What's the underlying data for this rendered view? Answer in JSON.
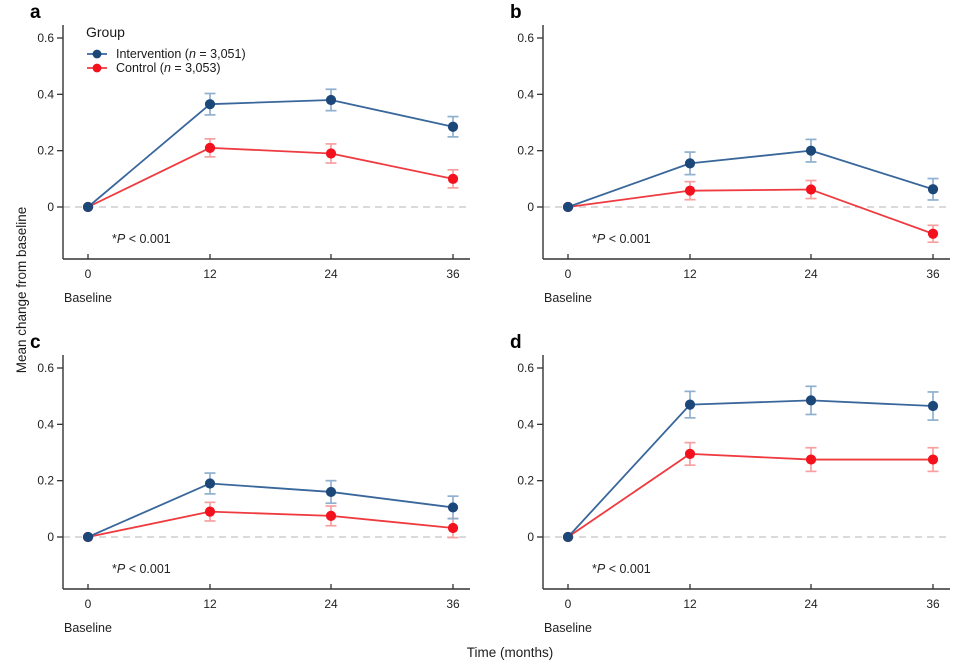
{
  "figure": {
    "y_axis_label": "Mean change from baseline",
    "x_axis_label": "Time (months)",
    "background_color": "#ffffff",
    "text_color": "#222222"
  },
  "legend": {
    "title": "Group",
    "items": [
      {
        "pre": "Intervention (",
        "var": "n",
        "post": " = 3,051)",
        "marker_color": "#1b4779",
        "line_color": "#39679b"
      },
      {
        "pre": "Control (",
        "var": "n",
        "post": " = 3,053)",
        "marker_color": "#f2111c",
        "line_color": "#ef3a3f"
      }
    ]
  },
  "annotation": {
    "star": "*",
    "var": "P",
    "rest": " < 0.001"
  },
  "style": {
    "axis_color": "#333333",
    "zero_line_color": "#c4c4c4",
    "tick_label_color": "#222222",
    "series": [
      {
        "name": "Intervention",
        "line": "#39679b",
        "marker": "#1b4779",
        "error": "#8fb0cf"
      },
      {
        "name": "Control",
        "line": "#ef3a3f",
        "marker": "#f2111c",
        "error": "#f7a0a0"
      }
    ]
  },
  "chart_data": {
    "type": "line",
    "x_label": "Time (months)",
    "y_label": "Mean change from baseline",
    "x_ticks": [
      0,
      12,
      24,
      36
    ],
    "x_tick_extra_label": "Baseline",
    "y_ticks": [
      0,
      0.2,
      0.4,
      0.6
    ],
    "ylim": [
      -0.19,
      0.66
    ],
    "grid": false,
    "legend_position": "top-left of panel a",
    "legend_entries": [
      "Intervention (n = 3,051)",
      "Control (n = 3,053)"
    ],
    "p_annotation": "*P < 0.001",
    "panels": [
      {
        "panel": "a",
        "x": [
          0,
          12,
          24,
          36
        ],
        "series": [
          {
            "name": "Intervention (n = 3,051)",
            "values": [
              0,
              0.365,
              0.38,
              0.285
            ],
            "errors": [
              0,
              0.038,
              0.038,
              0.036
            ]
          },
          {
            "name": "Control (n = 3,053)",
            "values": [
              0,
              0.21,
              0.19,
              0.1
            ],
            "errors": [
              0,
              0.032,
              0.034,
              0.032
            ]
          }
        ],
        "show_legend": true
      },
      {
        "panel": "b",
        "x": [
          0,
          12,
          24,
          36
        ],
        "series": [
          {
            "name": "Intervention (n = 3,051)",
            "values": [
              0,
              0.155,
              0.2,
              0.063
            ],
            "errors": [
              0,
              0.04,
              0.04,
              0.038
            ]
          },
          {
            "name": "Control (n = 3,053)",
            "values": [
              0,
              0.058,
              0.062,
              -0.095
            ],
            "errors": [
              0,
              0.032,
              0.032,
              0.03
            ]
          }
        ],
        "show_legend": false
      },
      {
        "panel": "c",
        "x": [
          0,
          12,
          24,
          36
        ],
        "series": [
          {
            "name": "Intervention (n = 3,051)",
            "values": [
              0,
              0.19,
              0.16,
              0.105
            ],
            "errors": [
              0,
              0.037,
              0.04,
              0.04
            ]
          },
          {
            "name": "Control (n = 3,053)",
            "values": [
              0,
              0.09,
              0.075,
              0.032
            ],
            "errors": [
              0,
              0.033,
              0.035,
              0.034
            ]
          }
        ],
        "show_legend": false
      },
      {
        "panel": "d",
        "x": [
          0,
          12,
          24,
          36
        ],
        "series": [
          {
            "name": "Intervention (n = 3,051)",
            "values": [
              0,
              0.47,
              0.485,
              0.465
            ],
            "errors": [
              0,
              0.047,
              0.05,
              0.05
            ]
          },
          {
            "name": "Control (n = 3,053)",
            "values": [
              0,
              0.295,
              0.275,
              0.275
            ],
            "errors": [
              0,
              0.04,
              0.042,
              0.042
            ]
          }
        ],
        "show_legend": false
      }
    ]
  }
}
